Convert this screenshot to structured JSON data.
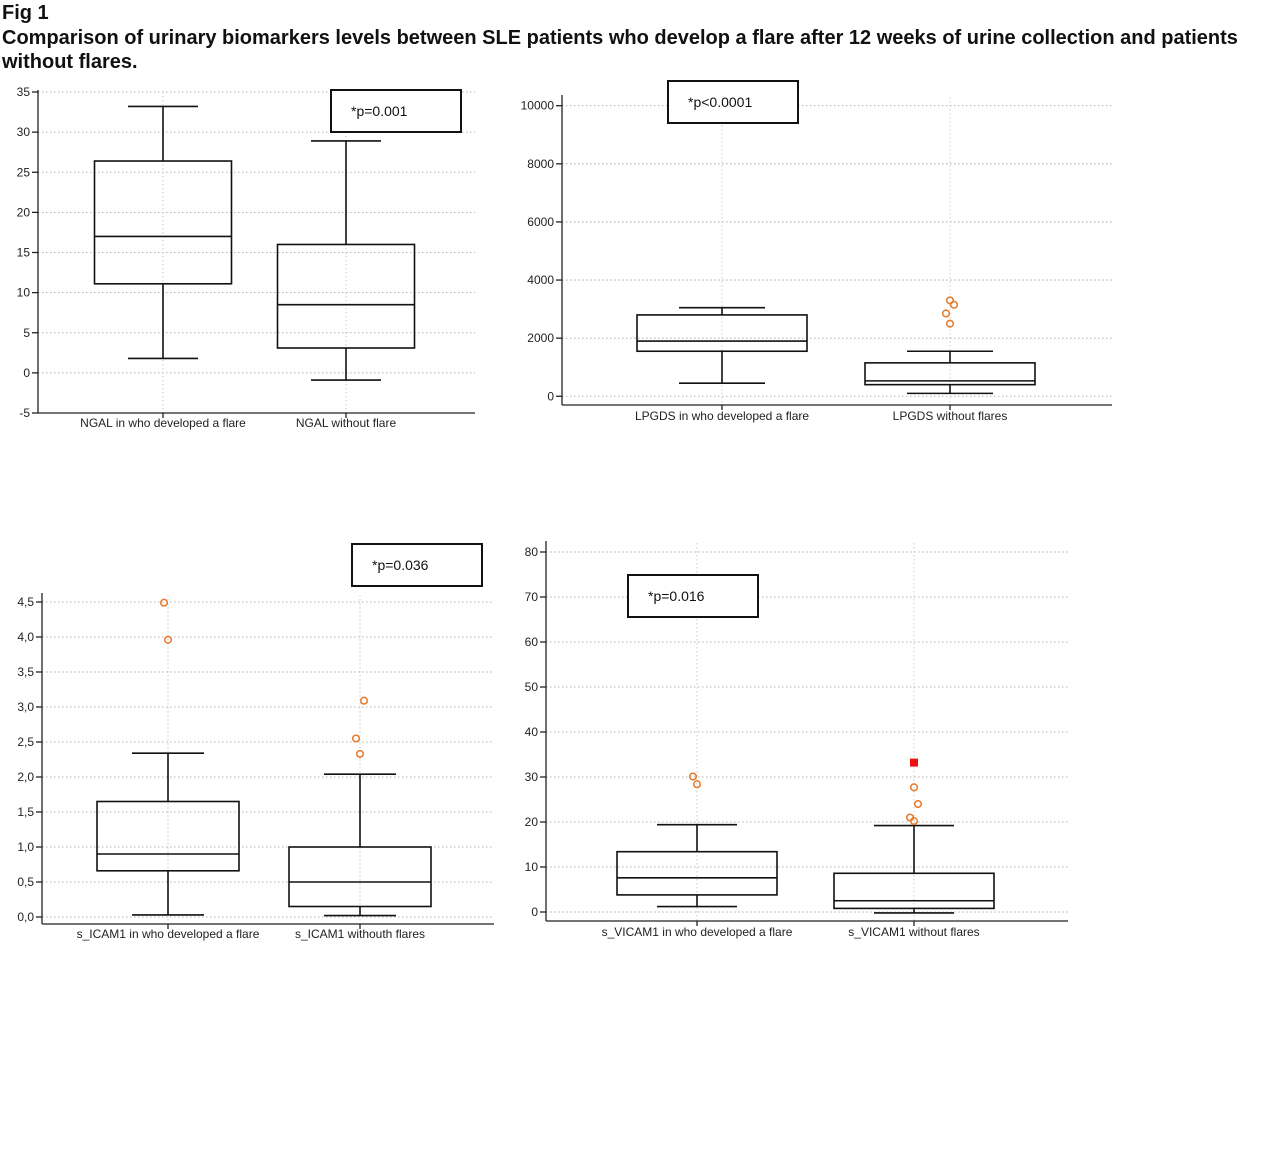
{
  "figure": {
    "label": "Fig 1",
    "title": "Comparison of urinary biomarkers levels between SLE patients who develop a flare after 12 weeks of urine collection and patients without flares."
  },
  "colors": {
    "outlier": "#e8782a",
    "extreme_outlier": "#ee1111",
    "box": "#111111"
  },
  "chart_data": [
    {
      "type": "boxplot",
      "id": "ngal",
      "annotation": "*p=0.001",
      "ylim": [
        -5,
        35
      ],
      "yticks": [
        -5,
        0,
        5,
        10,
        15,
        20,
        25,
        30,
        35
      ],
      "ytick_labels": [
        "-5",
        "0",
        "5",
        "10",
        "15",
        "20",
        "25",
        "30",
        "35"
      ],
      "grid": true,
      "categories": [
        "NGAL in who developed a flare",
        "NGAL without flare"
      ],
      "boxes": [
        {
          "whisker_low": 1.8,
          "q1": 11.1,
          "median": 17.0,
          "q3": 26.4,
          "whisker_high": 33.2,
          "outliers": [],
          "extremes": []
        },
        {
          "whisker_low": -0.9,
          "q1": 3.1,
          "median": 8.5,
          "q3": 16.0,
          "whisker_high": 28.9,
          "outliers": [],
          "extremes": []
        }
      ]
    },
    {
      "type": "boxplot",
      "id": "lpgds",
      "annotation": "*p<0.0001",
      "ylim": [
        -300,
        10300
      ],
      "yticks": [
        0,
        2000,
        4000,
        6000,
        8000,
        10000
      ],
      "ytick_labels": [
        "0",
        "2000",
        "4000",
        "6000",
        "8000",
        "10000"
      ],
      "grid": true,
      "categories": [
        "LPGDS in who developed a flare",
        "LPGDS without flares"
      ],
      "boxes": [
        {
          "whisker_low": 450,
          "q1": 1550,
          "median": 1900,
          "q3": 2800,
          "whisker_high": 3050,
          "outliers": [],
          "extremes": []
        },
        {
          "whisker_low": 100,
          "q1": 400,
          "median": 530,
          "q3": 1150,
          "whisker_high": 1550,
          "outliers": [
            2500,
            2850,
            3150,
            3300
          ],
          "extremes": []
        }
      ]
    },
    {
      "type": "boxplot",
      "id": "icam1",
      "annotation": "*p=0.036",
      "ylim": [
        -0.1,
        4.6
      ],
      "yticks": [
        0,
        0.5,
        1,
        1.5,
        2,
        2.5,
        3,
        3.5,
        4,
        4.5
      ],
      "ytick_labels": [
        "0,0",
        "0,5",
        "1,0",
        "1,5",
        "2,0",
        "2,5",
        "3,0",
        "3,5",
        "4,0",
        "4,5"
      ],
      "grid": true,
      "categories": [
        "s_ICAM1 in who developed a flare",
        "s_ICAM1 withouth flares"
      ],
      "boxes": [
        {
          "whisker_low": 0.03,
          "q1": 0.66,
          "median": 0.9,
          "q3": 1.65,
          "whisker_high": 2.34,
          "outliers": [
            3.96,
            4.49
          ],
          "extremes": []
        },
        {
          "whisker_low": 0.02,
          "q1": 0.15,
          "median": 0.5,
          "q3": 1.0,
          "whisker_high": 2.04,
          "outliers": [
            2.33,
            2.55,
            3.09
          ],
          "extremes": []
        }
      ]
    },
    {
      "type": "boxplot",
      "id": "vicam1",
      "annotation": "*p=0.016",
      "ylim": [
        -2,
        82
      ],
      "yticks": [
        0,
        10,
        20,
        30,
        40,
        50,
        60,
        70,
        80
      ],
      "ytick_labels": [
        "0",
        "10",
        "20",
        "30",
        "40",
        "50",
        "60",
        "70",
        "80"
      ],
      "grid": true,
      "categories": [
        "s_VICAM1 in who developed a flare",
        "s_VICAM1 without flares"
      ],
      "boxes": [
        {
          "whisker_low": 1.2,
          "q1": 3.8,
          "median": 7.6,
          "q3": 13.4,
          "whisker_high": 19.4,
          "outliers": [
            28.4,
            30.1
          ],
          "extremes": []
        },
        {
          "whisker_low": -0.2,
          "q1": 0.8,
          "median": 2.5,
          "q3": 8.6,
          "whisker_high": 19.2,
          "outliers": [
            20.2,
            21.0,
            24.0,
            27.7
          ],
          "extremes": [
            33.2
          ]
        }
      ]
    }
  ]
}
